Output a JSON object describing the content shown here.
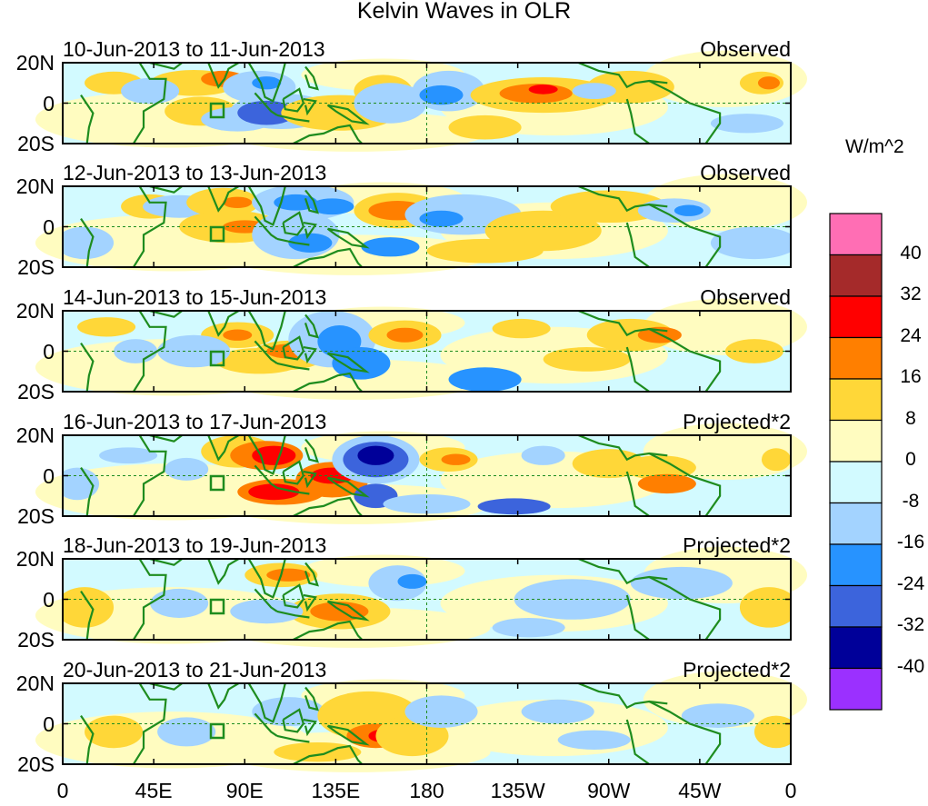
{
  "title": "Kelvin Waves in OLR",
  "units": "W/m^2",
  "panels": [
    {
      "dates": "10-Jun-2013 to 11-Jun-2013",
      "kind": "Observed"
    },
    {
      "dates": "12-Jun-2013 to 13-Jun-2013",
      "kind": "Observed"
    },
    {
      "dates": "14-Jun-2013 to 15-Jun-2013",
      "kind": "Observed"
    },
    {
      "dates": "16-Jun-2013 to 17-Jun-2013",
      "kind": "Projected*2"
    },
    {
      "dates": "18-Jun-2013 to 19-Jun-2013",
      "kind": "Projected*2"
    },
    {
      "dates": "20-Jun-2013 to 21-Jun-2013",
      "kind": "Projected*2"
    }
  ],
  "y_ticks": [
    "20N",
    "0",
    "20S"
  ],
  "x_ticks": [
    "0",
    "45E",
    "90E",
    "135E",
    "180",
    "135W",
    "90W",
    "45W",
    "0"
  ],
  "colorbar": {
    "labels": [
      "40",
      "32",
      "24",
      "16",
      "8",
      "0",
      "-8",
      "-16",
      "-24",
      "-32",
      "-40"
    ],
    "colors": [
      "#ff6eb4",
      "#a52a2a",
      "#ff0000",
      "#ff7f00",
      "#ffd738",
      "#fffcc0",
      "#d2faff",
      "#a3d3ff",
      "#2793ff",
      "#3c64dc",
      "#000099",
      "#9b30ff"
    ]
  },
  "colors": {
    "land": "#1e8c1e",
    "pos_weak": "#fffcc0",
    "neg_weak": "#d2faff"
  }
}
